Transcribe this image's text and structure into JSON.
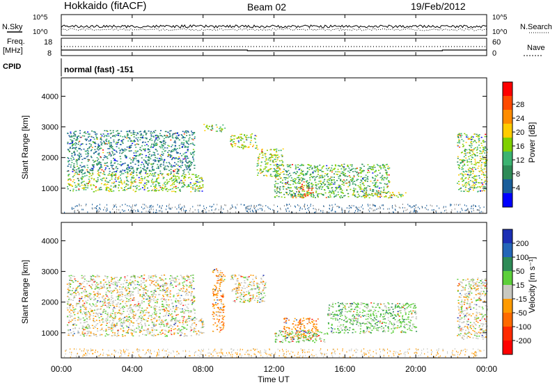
{
  "header": {
    "station": "Hokkaido (fitACF)",
    "beam": "Beam 02",
    "date": "19/Feb/2012"
  },
  "nsky": {
    "label": "N.Sky",
    "ticks": [
      "10^5",
      "10^0"
    ]
  },
  "nsearch": {
    "label": "N.Search",
    "ticks": [
      "10^5",
      "10^0"
    ]
  },
  "freq": {
    "label_line1": "Freq.",
    "label_line2": "[MHz]",
    "ticks": [
      "18",
      "8"
    ]
  },
  "nave": {
    "label": "Nave",
    "ticks": [
      "60",
      "0"
    ]
  },
  "cpid": {
    "label": "CPID",
    "value": "normal (fast) -151"
  },
  "xaxis": {
    "title": "Time UT",
    "ticks": [
      "00:00",
      "04:00",
      "08:00",
      "12:00",
      "16:00",
      "20:00",
      "00:00"
    ]
  },
  "yaxis": {
    "title": "Slant Range [km]",
    "ticks": [
      "4000",
      "3000",
      "2000",
      "1000"
    ]
  },
  "power_scale": {
    "title": "Power [dB]",
    "ticks": [
      "28",
      "24",
      "20",
      "16",
      "12",
      "8",
      "4"
    ],
    "colors": [
      "#ff0000",
      "#ff4a00",
      "#ff8c00",
      "#ffcc00",
      "#7fd000",
      "#3cb371",
      "#2e8b57",
      "#1a5e9a",
      "#0000ff"
    ]
  },
  "velocity_scale": {
    "title": "Velocity [m s⁻¹]",
    "ticks": [
      "200",
      "100",
      "50",
      "15",
      "-15",
      "-50",
      "-100",
      "-200"
    ],
    "colors": [
      "#1c2fb4",
      "#2466b8",
      "#2e8b57",
      "#5ccf3a",
      "#c8c8c0",
      "#ff9a00",
      "#ff6a00",
      "#ff2a00",
      "#ff0000"
    ]
  },
  "chart_data": [
    {
      "type": "heatmap",
      "title": "Power [dB]",
      "xlabel": "Time UT",
      "ylabel": "Slant Range [km]",
      "x_range": [
        "00:00",
        "24:00"
      ],
      "ylim": [
        180,
        4600
      ],
      "colorbar_range": [
        0,
        30
      ],
      "features": [
        {
          "t0": 0.3,
          "t1": 8.0,
          "r0": 900,
          "r1": 1500,
          "level": 14
        },
        {
          "t0": 0.3,
          "t1": 7.5,
          "r0": 1500,
          "r1": 2900,
          "level": 8
        },
        {
          "t0": 8.0,
          "t1": 9.2,
          "r0": 2850,
          "r1": 3100,
          "level": 14
        },
        {
          "t0": 9.5,
          "t1": 11.0,
          "r0": 2300,
          "r1": 2800,
          "level": 16
        },
        {
          "t0": 11.0,
          "t1": 12.5,
          "r0": 1400,
          "r1": 2300,
          "level": 14
        },
        {
          "t0": 13.0,
          "t1": 14.2,
          "r0": 700,
          "r1": 1100,
          "level": 24
        },
        {
          "t0": 12.0,
          "t1": 18.5,
          "r0": 700,
          "r1": 1800,
          "level": 12
        },
        {
          "t0": 17.0,
          "t1": 19.5,
          "r0": 700,
          "r1": 900,
          "level": 16
        },
        {
          "t0": 22.3,
          "t1": 24.0,
          "r0": 900,
          "r1": 2800,
          "level": 14
        }
      ]
    },
    {
      "type": "heatmap",
      "title": "Velocity [m s⁻¹]",
      "xlabel": "Time UT",
      "ylabel": "Slant Range [km]",
      "x_range": [
        "00:00",
        "24:00"
      ],
      "ylim": [
        180,
        4600
      ],
      "colorbar_range": [
        -200,
        200
      ],
      "features": [
        {
          "t0": 0.3,
          "t1": 8.0,
          "r0": 900,
          "r1": 1500,
          "level": 0
        },
        {
          "t0": 0.3,
          "t1": 7.5,
          "r0": 1500,
          "r1": 2900,
          "level": 0
        },
        {
          "t0": 8.5,
          "t1": 9.2,
          "r0": 1000,
          "r1": 3100,
          "level": -50
        },
        {
          "t0": 9.5,
          "t1": 11.5,
          "r0": 2000,
          "r1": 2900,
          "level": 0
        },
        {
          "t0": 12.5,
          "t1": 14.5,
          "r0": 800,
          "r1": 1500,
          "level": -60
        },
        {
          "t0": 12.0,
          "t1": 15.0,
          "r0": 700,
          "r1": 1100,
          "level": 40
        },
        {
          "t0": 15.0,
          "t1": 20.0,
          "r0": 1000,
          "r1": 2000,
          "level": 40
        },
        {
          "t0": 22.3,
          "t1": 24.0,
          "r0": 800,
          "r1": 2800,
          "level": 0
        }
      ]
    }
  ]
}
